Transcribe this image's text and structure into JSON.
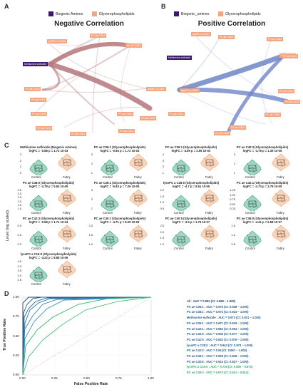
{
  "panels": {
    "a": "A",
    "b": "B",
    "c": "C",
    "d": "D"
  },
  "legend": {
    "a": {
      "biogenic": "Biogenic Amines",
      "glycero": "Glycerophospholipids"
    },
    "b": {
      "biogenic": "Biogenic_amines",
      "glycero": "Glycerophospholipids"
    },
    "colors": {
      "biogenic": "#3b1a6b",
      "glycero": "#f4a582"
    }
  },
  "network_a": {
    "title": "Negative Correlation",
    "edge_color": "#b5777a",
    "nodes": [
      {
        "label": "PC ae C38:1",
        "type": "glycero"
      },
      {
        "label": "lysoPC a C16:0",
        "type": "glycero"
      },
      {
        "label": "PC ae C38:0",
        "type": "glycero"
      },
      {
        "label": "PC ae C42:3",
        "type": "glycero"
      },
      {
        "label": "Methionine sulfoxide",
        "type": "biogenic"
      },
      {
        "label": "lysoPC a C28:0",
        "type": "glycero"
      },
      {
        "label": "PC aa C36:1",
        "type": "glycero"
      },
      {
        "label": "PC ae C40:5",
        "type": "glycero"
      },
      {
        "label": "PC ae C36:0",
        "type": "glycero"
      },
      {
        "label": "PC ae C40:3",
        "type": "glycero"
      },
      {
        "label": "PC ae C42:5",
        "type": "glycero"
      },
      {
        "label": "PC ae C40:1",
        "type": "glycero"
      },
      {
        "label": "PC ae C36:1",
        "type": "glycero"
      }
    ]
  },
  "network_b": {
    "title": "Positive Correlation",
    "edge_color": "#6f86c8",
    "nodes": [
      {
        "label": "lysoPC a C16:0",
        "type": "glycero"
      },
      {
        "label": "PC ae C38:1",
        "type": "glycero"
      },
      {
        "label": "PC ae C38:0",
        "type": "glycero"
      },
      {
        "label": "PC ae C42:3",
        "type": "glycero"
      },
      {
        "label": "Methionine sulfoxide",
        "type": "biogenic"
      },
      {
        "label": "PC ae C40:5",
        "type": "glycero"
      },
      {
        "label": "lysoPC a C28:0",
        "type": "glycero"
      },
      {
        "label": "PC aa C36:1",
        "type": "glycero"
      },
      {
        "label": "PC ae C36:0",
        "type": "glycero"
      },
      {
        "label": "PC ae C42:5",
        "type": "glycero"
      },
      {
        "label": "PC ae C36:1",
        "type": "glycero"
      },
      {
        "label": "PC ae C40:1",
        "type": "glycero"
      },
      {
        "label": "PC ae C40:3",
        "type": "glycero"
      }
    ]
  },
  "violin": {
    "y_axis_label": "Level (log scaled)",
    "groups": [
      "Control",
      "Fabry"
    ],
    "colors": {
      "control": "#2ea37a",
      "fabry": "#f0a36e"
    },
    "plots": [
      {
        "title": "Methionine sulfoxide (Biogenic Amines)",
        "stat": "logFC = -0.88  p = 1.72 10-03",
        "yticks": [
          "3",
          "2",
          "1",
          "0"
        ]
      },
      {
        "title": "PC ae C36:1 (Glycerophospholipids)",
        "stat": "logFC = -0.94  p = 1.72 10-03",
        "yticks": [
          "3",
          "2",
          "1"
        ]
      },
      {
        "title": "PC ae C36:1 (Glycerophospholipids)",
        "stat": "logFC = -4.89  p = 3.96 10-02",
        "yticks": [
          "4",
          "3",
          "2",
          "1"
        ]
      },
      {
        "title": "PC ae C40:3 (Glycerophospholipids)",
        "stat": "logFC = -4.78  p = 1.39 10-05",
        "yticks": [
          "3",
          "2",
          "1"
        ]
      },
      {
        "title": "PC ae C38:0 (Glycerophospholipids)",
        "stat": "logFC = -4.78  p = 5.84 10-05",
        "yticks": [
          "3.5",
          "3.0",
          "2.5",
          "2.0",
          "1.5",
          "1.0"
        ]
      },
      {
        "title": "PC ae C38:1 (Glycerophospholipids)",
        "stat": "logFC = -5.83  p = 7.26 10-05",
        "yticks": [
          "3",
          "2",
          "1"
        ]
      },
      {
        "title": "lysoPC a C28:0 (Glycerophospholipids)",
        "stat": "logFC = -4.7  p = 8.61 10-05",
        "yticks": [
          "2.0",
          "1.5",
          "1.0",
          "0.5"
        ]
      },
      {
        "title": "PC ae C42:1 (Glycerophospholipids)",
        "stat": "logFC = -4.73  p = 3.79 10-05",
        "yticks": [
          "1.25",
          "1.00",
          "0.75",
          "0.50",
          "0.25"
        ]
      },
      {
        "title": "PC ae C42:3 (Glycerophospholipids)",
        "stat": "logFC = -0.68  p = 1.71 10-04",
        "yticks": [
          "0.9",
          "0.6",
          "0.3"
        ]
      },
      {
        "title": "PC ae C40:1 (Glycerophospholipids)",
        "stat": "logFC = -4.71  p = 8.09 10-03",
        "yticks": [
          "2.0",
          "1.5",
          "1.0"
        ]
      },
      {
        "title": "PC ae C40:5 (Glycerophospholipids)",
        "stat": "logFC = -4.3  p = 1.75 10-07",
        "yticks": [
          "2.5",
          "2.0",
          "1.5",
          "1.0"
        ]
      },
      {
        "title": "PC ae C36:0 (Glycerophospholipids)",
        "stat": "logFC = -4.41  p = 5.58 10-07",
        "yticks": [
          "1.6",
          "1.2",
          "0.8"
        ]
      },
      {
        "title": "lysoPC a C16:0 (Glycerophospholipids)",
        "stat": "logFC = -4.22  p = 8.88 10-06",
        "yticks": [
          "4.5",
          "4.0",
          "3.5",
          "3.0",
          "2.5"
        ]
      }
    ]
  },
  "roc": {
    "x_label": "False Positive Rate",
    "y_label": "True Positive Rate",
    "x_ticks": [
      "0.00",
      "0.25",
      "0.50",
      "0.75",
      "1.00"
    ],
    "y_ticks": [
      "1.00",
      "0.75",
      "0.50",
      "0.25",
      "0.00"
    ],
    "legend": [
      {
        "text": "All : AUC = 0.992 (CI: 0.968 – 1.000)",
        "color": "#1b3f70"
      },
      {
        "text": "PC ae C36:1 : AUC = 0.975 (CI: 0.928 – 1.000)",
        "color": "#1f5b8c"
      },
      {
        "text": "PC ae C38:1 : AUC = 0.972 (CI: 0.923 – 1.000)",
        "color": "#1f5b8c"
      },
      {
        "text": "Methionine sulfoxide : AUC = 0.973 (CI: 0.921 – 1.000)",
        "color": "#1f5b8c"
      },
      {
        "text": "PC ae C36:1 : AUC = 0.971 (CI: 0.919 – 1.000)",
        "color": "#1f5b8c"
      },
      {
        "text": "PC ae C42:1 : AUC = 0.962 (CI: 0.904 – 1.000)",
        "color": "#1f5b8c"
      },
      {
        "text": "PC ae C40:3 : AUC = 0.946 (CI: 0.877 – 1.000)",
        "color": "#1f5b8c"
      },
      {
        "text": "PC ae C42:5 : AUC = 0.943 (CI: 0.876 – 1.000)",
        "color": "#1f5b8c"
      },
      {
        "text": "lysoPC a C28:0 : AUC = 0.943 (CI: 0.873 – 1.000)",
        "color": "#1f5b8c"
      },
      {
        "text": "PC ae C42:3 : AUC = 0.94 (CI: 0.867 – 1.000)",
        "color": "#1f5b8c"
      },
      {
        "text": "PC ae C40:1 : AUC = 0.928 (CI: 0.846 – 1.000)",
        "color": "#1f5b8c"
      },
      {
        "text": "PC ae C40:5 : AUC = 0.913 (CI: 0.827 – 1.000)",
        "color": "#1f5b8c"
      },
      {
        "text": "lysoPC a C16:0 : AUC = 0.736 (CI: 0.600 – 0.872)",
        "color": "#2eae6a"
      },
      {
        "text": "PC ae C36:0 : AUC = 0.673 (CI: 0.531 – 0.814)",
        "color": "#2eae6a"
      }
    ]
  }
}
